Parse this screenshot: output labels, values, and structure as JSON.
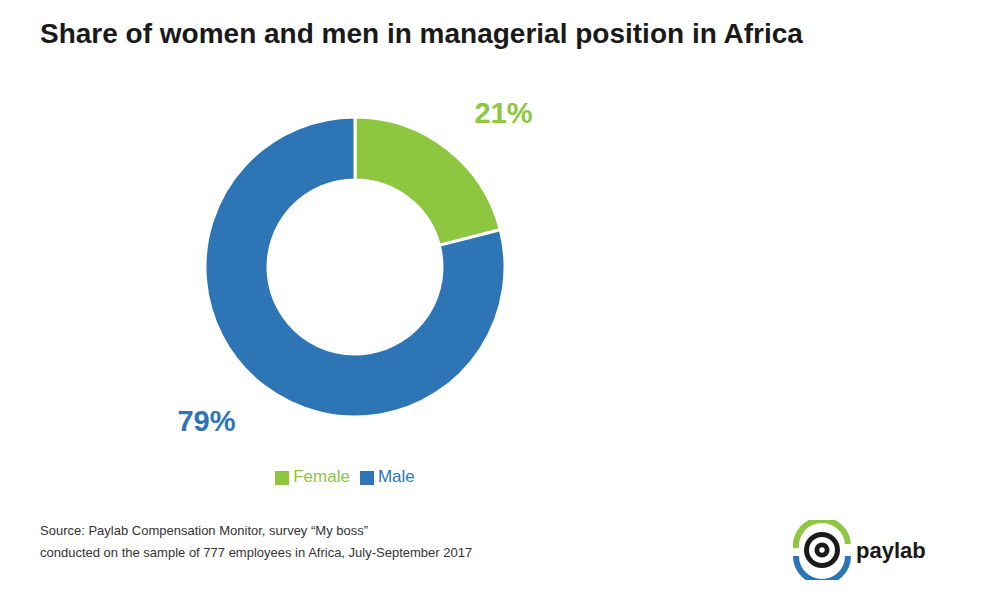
{
  "chart_data": {
    "type": "pie",
    "title": "Share of women and men in managerial position in Africa",
    "categories": [
      "Female",
      "Male"
    ],
    "values": [
      21,
      79
    ],
    "value_labels": [
      "21%",
      "79%"
    ],
    "colors": [
      "#8DC63F",
      "#2E75B6"
    ],
    "data_labels": true,
    "legend": "bottom",
    "annotations": [
      "Source: Paylab Compensation Monitor, survey “My boss”",
      "conducted on the sample of 777 employees in Africa, July-September 2017",
      "paylab"
    ]
  }
}
